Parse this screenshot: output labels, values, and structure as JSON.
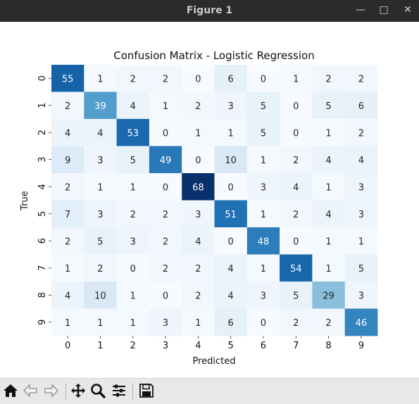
{
  "window": {
    "title": "Figure 1",
    "minimize_glyph": "—",
    "maximize_glyph": "□",
    "close_glyph": "✕"
  },
  "toolbar": {
    "items": [
      "home-icon",
      "back-arrow-icon",
      "forward-arrow-icon",
      "pan-icon",
      "zoom-icon",
      "configure-subplots-icon",
      "save-icon"
    ]
  },
  "chart_data": {
    "type": "heatmap",
    "title": "Confusion Matrix - Logistic Regression",
    "xlabel": "Predicted",
    "ylabel": "True",
    "x_categories": [
      "0",
      "1",
      "2",
      "3",
      "4",
      "5",
      "6",
      "7",
      "8",
      "9"
    ],
    "y_categories": [
      "0",
      "1",
      "2",
      "3",
      "4",
      "5",
      "6",
      "7",
      "8",
      "9"
    ],
    "values": [
      [
        55,
        1,
        2,
        2,
        0,
        6,
        0,
        1,
        2,
        2
      ],
      [
        2,
        39,
        4,
        1,
        2,
        3,
        5,
        0,
        5,
        6
      ],
      [
        4,
        4,
        53,
        0,
        1,
        1,
        5,
        0,
        1,
        2
      ],
      [
        9,
        3,
        5,
        49,
        0,
        10,
        1,
        2,
        4,
        4
      ],
      [
        2,
        1,
        1,
        0,
        68,
        0,
        3,
        4,
        1,
        3
      ],
      [
        7,
        3,
        2,
        2,
        3,
        51,
        1,
        2,
        4,
        3
      ],
      [
        2,
        5,
        3,
        2,
        4,
        0,
        48,
        0,
        1,
        1
      ],
      [
        1,
        2,
        0,
        2,
        2,
        4,
        1,
        54,
        1,
        5
      ],
      [
        4,
        10,
        1,
        0,
        2,
        4,
        3,
        5,
        29,
        3
      ],
      [
        1,
        1,
        1,
        3,
        1,
        6,
        0,
        2,
        2,
        46
      ]
    ],
    "colormap": "Blues",
    "value_range": [
      0,
      68
    ],
    "colorbar": false,
    "annotated": true
  }
}
